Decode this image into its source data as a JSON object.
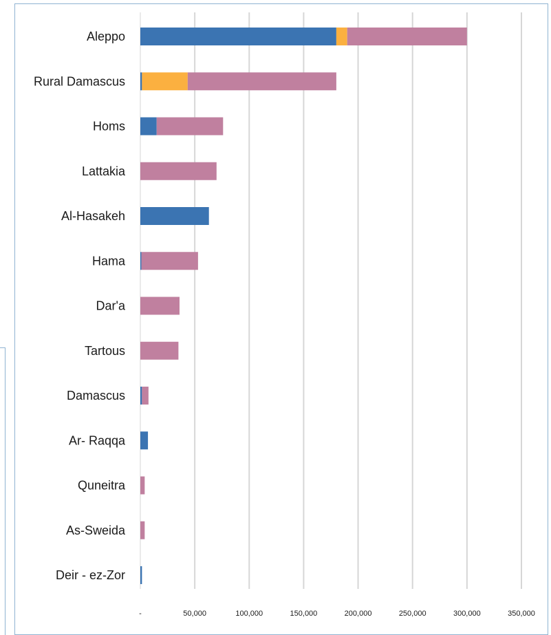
{
  "chart_data": {
    "type": "bar",
    "orientation": "horizontal",
    "stacked": true,
    "categories": [
      "Aleppo",
      "Rural Damascus",
      "Homs",
      "Lattakia",
      "Al-Hasakeh",
      "Hama",
      "Dar'a",
      "Tartous",
      "Damascus",
      "Ar- Raqqa",
      "Quneitra",
      "As-Sweida",
      "Deir - ez-Zor"
    ],
    "series": [
      {
        "color": "#3b74b2",
        "values": [
          180000,
          1500,
          15000,
          0,
          63000,
          1000,
          0,
          0,
          1500,
          7000,
          0,
          0,
          1500
        ]
      },
      {
        "color": "#fbb040",
        "values": [
          10000,
          42000,
          0,
          0,
          0,
          0,
          0,
          0,
          0,
          0,
          0,
          0,
          0
        ]
      },
      {
        "color": "#c0809f",
        "values": [
          110000,
          136500,
          61000,
          70000,
          0,
          52000,
          36000,
          35000,
          6000,
          0,
          4000,
          4000,
          0
        ]
      }
    ],
    "xlim": [
      0,
      350000
    ],
    "xticks": [
      0,
      50000,
      100000,
      150000,
      200000,
      250000,
      300000,
      350000
    ],
    "xtick_labels": [
      "-",
      "50,000",
      "100,000",
      "150,000",
      "200,000",
      "250,000",
      "300,000",
      "350,000"
    ],
    "grid": true,
    "title": "",
    "xlabel": "",
    "ylabel": ""
  }
}
